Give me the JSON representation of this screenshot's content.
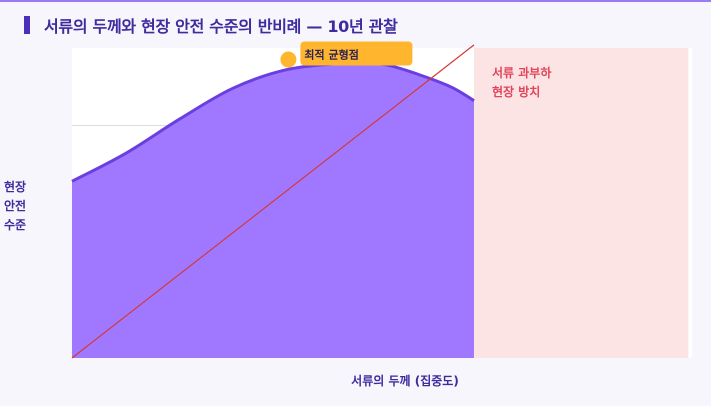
{
  "title": "서류의 두께와 현장 안전 수준의 반비례 — 10년 관찰",
  "colors": {
    "accent": "#4a2fb8",
    "curve_fill": "#a078ff",
    "curve_stroke": "#6a3fe0",
    "trend_line": "#d33a3a",
    "zone_fill": "#fde4e4",
    "zone_text": "#e0435a",
    "callout": "#ffb52e"
  },
  "chart_data": {
    "type": "area",
    "xlabel": "서류의 두께 (집중도)",
    "ylabel": "현장\n안전\n수준",
    "xlim": [
      0,
      10
    ],
    "ylim": [
      0,
      10
    ],
    "grid": true,
    "series": [
      {
        "x": [
          0,
          1,
          2,
          3,
          4,
          5,
          5.5,
          6,
          7,
          7.5
        ],
        "values": [
          5.7,
          6.6,
          7.7,
          8.7,
          9.3,
          9.5,
          9.5,
          9.4,
          8.8,
          8.3
        ]
      }
    ],
    "trend_line": {
      "x": [
        0,
        7.5
      ],
      "y": [
        0,
        10.1
      ]
    },
    "annotations": [
      {
        "text": "최적 균형점",
        "x": 4,
        "y": 9.5
      }
    ],
    "shaded_zone": {
      "label": "서류 과부하\n현장 방치",
      "x_from": 7.5,
      "x_to": 11.5
    }
  }
}
